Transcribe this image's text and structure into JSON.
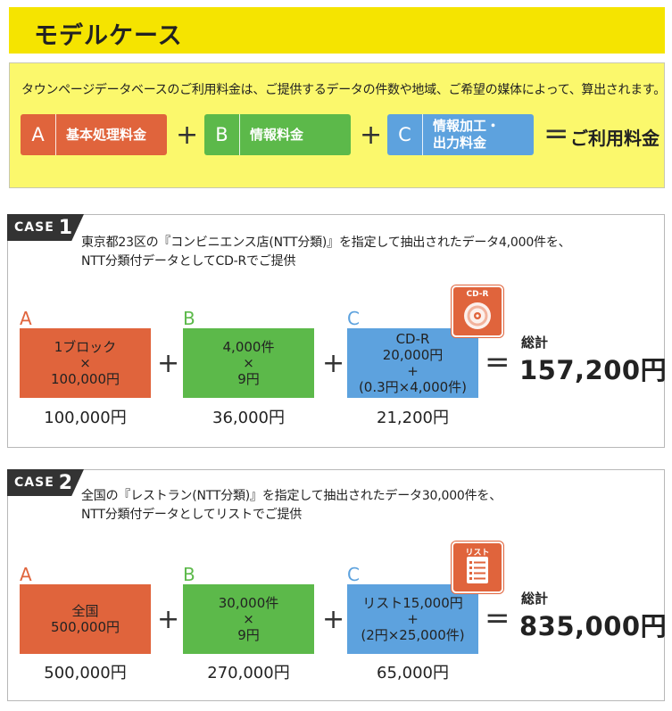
{
  "header": {
    "title": "モデルケース"
  },
  "intro": {
    "description": "タウンページデータベースのご利用料金は、ご提供するデータの件数や地域、ご希望の媒体によって、算出されます。",
    "items": [
      {
        "letter": "A",
        "label": "基本処理料金"
      },
      {
        "letter": "B",
        "label": "情報料金"
      },
      {
        "letter": "C",
        "label_line1": "情報加工・",
        "label_line2": "出力料金"
      }
    ],
    "plus": "+",
    "equals": "=",
    "result_label": "ご利用料金"
  },
  "cases": [
    {
      "tag_word": "CASE",
      "tag_number": "1",
      "desc_line1": "東京都23区の『コンビニエンス店(NTT分類)』を指定して抽出されたデータ4,000件を、",
      "desc_line2": "NTT分類付データとしてCD-Rでご提供",
      "media_label": "CD-R",
      "media_icon": "cd-disc-icon",
      "a": {
        "letter": "A",
        "lines": [
          "1ブロック",
          "×",
          "100,000円"
        ],
        "amount": "100,000円"
      },
      "b": {
        "letter": "B",
        "lines": [
          "4,000件",
          "×",
          "9円"
        ],
        "amount": "36,000円"
      },
      "c": {
        "letter": "C",
        "lines": [
          "CD-R",
          "20,000円",
          "+",
          "(0.3円×4,000件)"
        ],
        "amount": "21,200円"
      },
      "total_label": "総計",
      "total_value": "157,200円"
    },
    {
      "tag_word": "CASE",
      "tag_number": "2",
      "desc_line1": "全国の『レストラン(NTT分類)』を指定して抽出されたデータ30,000件を、",
      "desc_line2": "NTT分類付データとしてリストでご提供",
      "media_label": "リスト",
      "media_icon": "list-document-icon",
      "a": {
        "letter": "A",
        "lines": [
          "全国",
          "500,000円"
        ],
        "amount": "500,000円"
      },
      "b": {
        "letter": "B",
        "lines": [
          "30,000件",
          "×",
          "9円"
        ],
        "amount": "270,000円"
      },
      "c": {
        "letter": "C",
        "lines": [
          "リスト15,000円",
          "+",
          "(2円×25,000件)"
        ],
        "amount": "65,000円"
      },
      "total_label": "総計",
      "total_value": "835,000円"
    }
  ],
  "colors": {
    "title_yellow": "#f5e400",
    "intro_yellow": "#fbf86c",
    "orange": "#e0643c",
    "green": "#5cb94a",
    "blue": "#5da2de"
  }
}
